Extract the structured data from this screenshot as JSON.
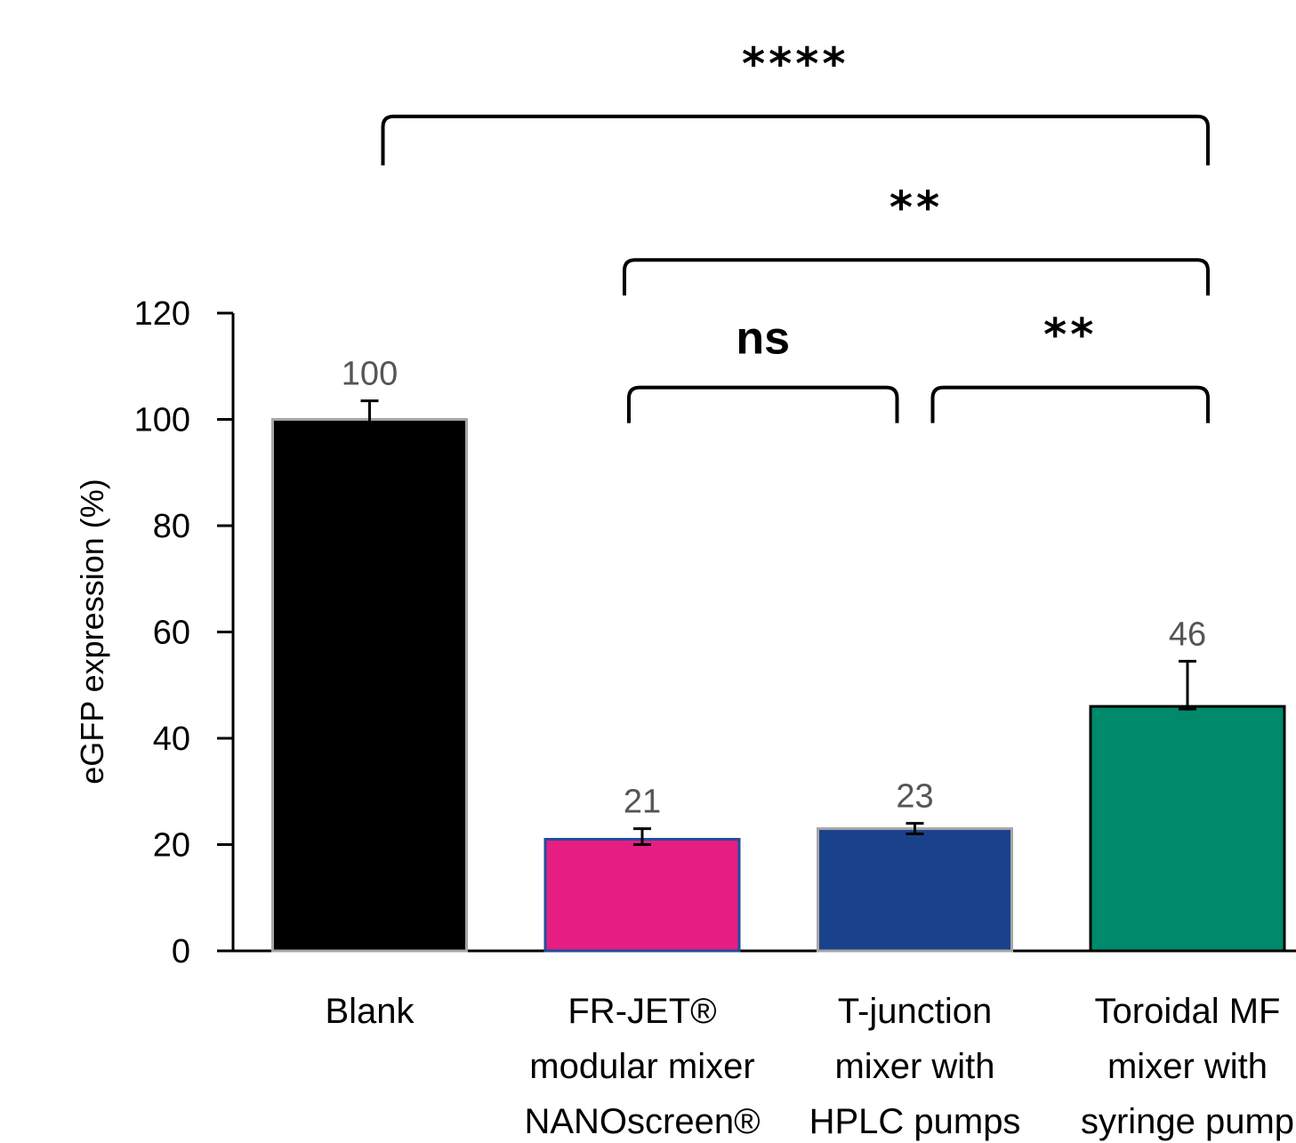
{
  "chart_data": {
    "type": "bar",
    "title": "",
    "xlabel": "",
    "ylabel": "eGFP expression (%)",
    "ylim": [
      0,
      120
    ],
    "yticks": [
      0,
      20,
      40,
      60,
      80,
      100,
      120
    ],
    "grid": false,
    "categories": [
      [
        "Blank"
      ],
      [
        "FR-JET®",
        "modular mixer",
        "NANOscreen®"
      ],
      [
        "T-junction",
        "mixer with",
        "HPLC pumps"
      ],
      [
        "Toroidal MF",
        "mixer with",
        "syringe pump"
      ]
    ],
    "values": [
      100,
      21,
      23,
      46
    ],
    "data_labels": [
      "100",
      "21",
      "23",
      "46"
    ],
    "error_low": [
      99,
      20,
      22,
      45.5
    ],
    "error_high": [
      103.5,
      23,
      24,
      54.5
    ],
    "colors": [
      "#000000",
      "#e61e83",
      "#1a428a",
      "#00896b"
    ],
    "border_colors": [
      "#a6a6a6",
      "#1f4e9b",
      "#a6a6a6",
      "#000000"
    ],
    "significance": [
      {
        "from": 0,
        "to": 3,
        "label": "****",
        "y": 157
      },
      {
        "from": 1,
        "to": 3,
        "label": "**",
        "y": 130
      },
      {
        "from": 1,
        "to": 2,
        "label": "ns",
        "y": 106
      },
      {
        "from": 2,
        "to": 3,
        "label": "**",
        "y": 106
      }
    ]
  }
}
